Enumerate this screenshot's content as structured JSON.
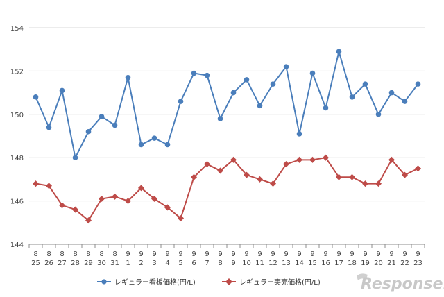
{
  "chart_data": {
    "type": "line",
    "title": "",
    "xlabel": "",
    "ylabel": "",
    "ylim": [
      144,
      154
    ],
    "yticks": [
      "144",
      "146",
      "148",
      "150",
      "152",
      "154"
    ],
    "categories": [
      {
        "month": "8",
        "day": "25"
      },
      {
        "month": "8",
        "day": "26"
      },
      {
        "month": "8",
        "day": "27"
      },
      {
        "month": "8",
        "day": "28"
      },
      {
        "month": "8",
        "day": "29"
      },
      {
        "month": "8",
        "day": "30"
      },
      {
        "month": "8",
        "day": "31"
      },
      {
        "month": "9",
        "day": "1"
      },
      {
        "month": "9",
        "day": "2"
      },
      {
        "month": "9",
        "day": "3"
      },
      {
        "month": "9",
        "day": "4"
      },
      {
        "month": "9",
        "day": "5"
      },
      {
        "month": "9",
        "day": "6"
      },
      {
        "month": "9",
        "day": "7"
      },
      {
        "month": "9",
        "day": "8"
      },
      {
        "month": "9",
        "day": "9"
      },
      {
        "month": "9",
        "day": "10"
      },
      {
        "month": "9",
        "day": "11"
      },
      {
        "month": "9",
        "day": "12"
      },
      {
        "month": "9",
        "day": "13"
      },
      {
        "month": "9",
        "day": "14"
      },
      {
        "month": "9",
        "day": "15"
      },
      {
        "month": "9",
        "day": "16"
      },
      {
        "month": "9",
        "day": "17"
      },
      {
        "month": "9",
        "day": "18"
      },
      {
        "month": "9",
        "day": "19"
      },
      {
        "month": "9",
        "day": "20"
      },
      {
        "month": "9",
        "day": "21"
      },
      {
        "month": "9",
        "day": "22"
      },
      {
        "month": "9",
        "day": "23"
      }
    ],
    "series": [
      {
        "name": "レギュラー看板価格(円/L)",
        "color": "#4a7ebb",
        "marker": "circle",
        "values": [
          150.8,
          149.4,
          151.1,
          148.0,
          149.2,
          149.9,
          149.5,
          151.7,
          148.6,
          148.9,
          148.6,
          150.6,
          151.9,
          151.8,
          149.8,
          151.0,
          151.6,
          150.4,
          151.4,
          152.2,
          149.1,
          151.9,
          150.3,
          152.9,
          150.8,
          151.4,
          150.0,
          151.0,
          150.6,
          151.4
        ]
      },
      {
        "name": "レギュラー実売価格(円/L)",
        "color": "#be4b48",
        "marker": "diamond",
        "values": [
          146.8,
          146.7,
          145.8,
          145.6,
          145.1,
          146.1,
          146.2,
          146.0,
          146.6,
          146.1,
          145.7,
          145.2,
          147.1,
          147.7,
          147.4,
          147.9,
          147.2,
          147.0,
          146.8,
          147.7,
          147.9,
          147.9,
          148.0,
          147.1,
          147.1,
          146.8,
          146.8,
          147.9,
          147.2,
          147.5
        ]
      }
    ],
    "grid": true,
    "legend": "bottom"
  },
  "watermark": "Response."
}
